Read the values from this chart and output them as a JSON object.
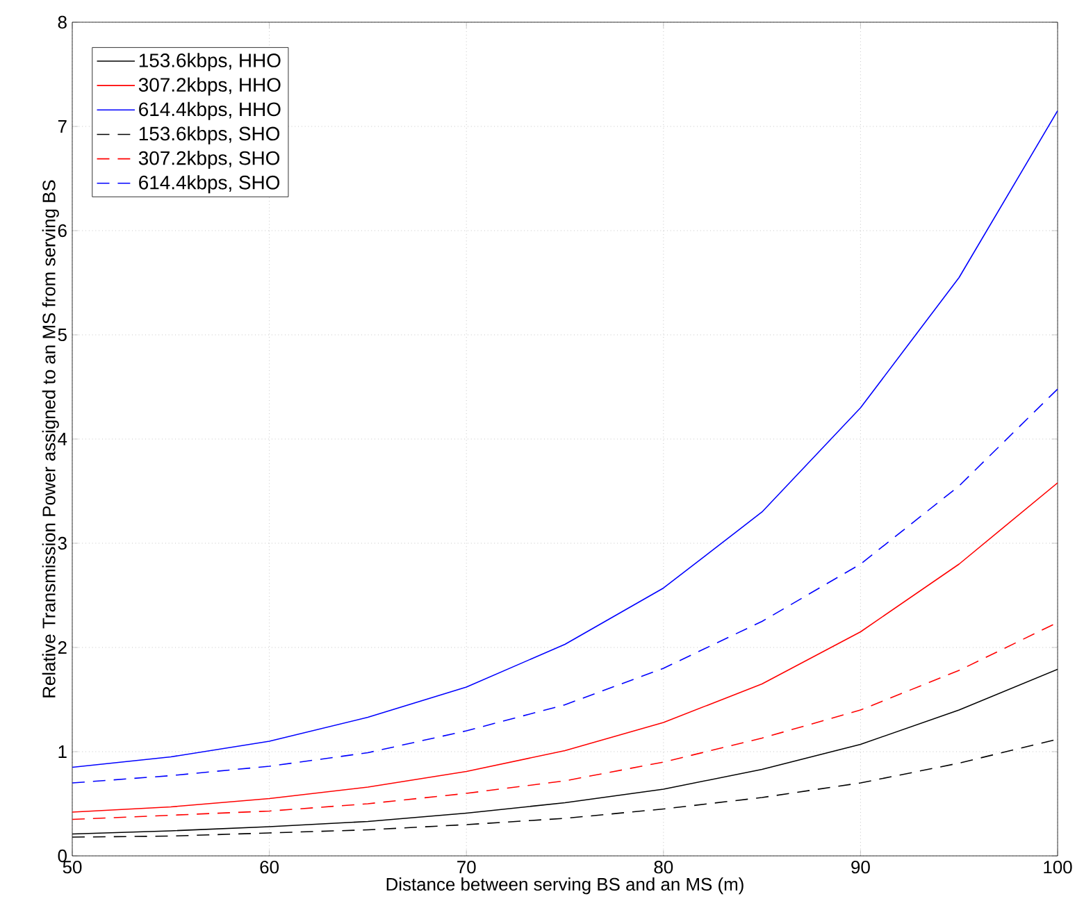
{
  "chart_data": {
    "type": "line",
    "xlabel": "Distance between serving BS and an MS (m)",
    "ylabel": "Relative Transmission Power assigned to an MS from serving BS",
    "x": [
      50,
      55,
      60,
      65,
      70,
      75,
      80,
      85,
      90,
      95,
      100
    ],
    "series": [
      {
        "name": "153.6kbps, HHO",
        "color": "#000000",
        "line_style": "solid",
        "values": [
          0.21,
          0.24,
          0.28,
          0.33,
          0.41,
          0.51,
          0.64,
          0.83,
          1.07,
          1.4,
          1.79
        ]
      },
      {
        "name": "307.2kbps, HHO",
        "color": "#ff0000",
        "line_style": "solid",
        "values": [
          0.42,
          0.47,
          0.55,
          0.66,
          0.81,
          1.01,
          1.28,
          1.65,
          2.15,
          2.8,
          3.58
        ]
      },
      {
        "name": "614.4kbps, HHO",
        "color": "#0000ff",
        "line_style": "solid",
        "values": [
          0.85,
          0.95,
          1.1,
          1.33,
          1.62,
          2.03,
          2.57,
          3.3,
          4.3,
          5.55,
          7.15
        ]
      },
      {
        "name": "153.6kbps, SHO",
        "color": "#000000",
        "line_style": "dashed",
        "values": [
          0.18,
          0.19,
          0.22,
          0.25,
          0.3,
          0.36,
          0.45,
          0.56,
          0.7,
          0.89,
          1.12
        ]
      },
      {
        "name": "307.2kbps, SHO",
        "color": "#ff0000",
        "line_style": "dashed",
        "values": [
          0.35,
          0.39,
          0.43,
          0.5,
          0.6,
          0.72,
          0.9,
          1.13,
          1.4,
          1.78,
          2.24
        ]
      },
      {
        "name": "614.4kbps, SHO",
        "color": "#0000ff",
        "line_style": "dashed",
        "values": [
          0.7,
          0.77,
          0.86,
          0.99,
          1.2,
          1.45,
          1.8,
          2.25,
          2.8,
          3.55,
          4.48
        ]
      }
    ],
    "xlim": [
      50,
      100
    ],
    "ylim": [
      0,
      8
    ],
    "xticks": [
      50,
      60,
      70,
      80,
      90,
      100
    ],
    "yticks": [
      0,
      1,
      2,
      3,
      4,
      5,
      6,
      7,
      8
    ],
    "grid": true,
    "legend": "top left",
    "marker": "none"
  }
}
